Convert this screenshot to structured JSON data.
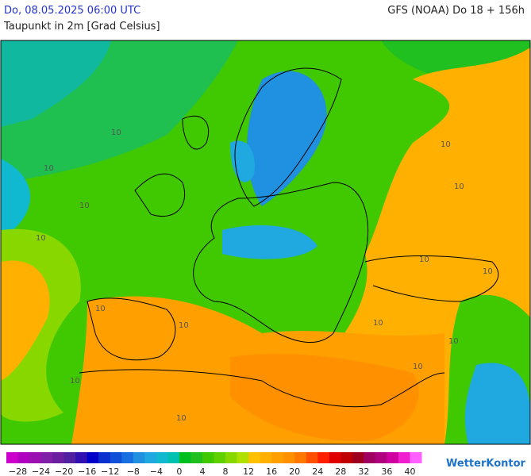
{
  "header": {
    "date": "Do, 08.05.2025 06:00 UTC",
    "model": "GFS (NOAA) Do 18 + 156h",
    "subtitle": "Taupunkt in 2m [Grad Celsius]"
  },
  "map": {
    "contour_labels": [
      "10",
      "10",
      "10",
      "10",
      "10",
      "10",
      "10",
      "10",
      "10",
      "10",
      "10",
      "10",
      "10",
      "10",
      "10"
    ]
  },
  "legend": {
    "colors": [
      "#cc00cc",
      "#b000c0",
      "#9a10b0",
      "#8020a8",
      "#6a1fa0",
      "#5020a0",
      "#3010b0",
      "#0000c8",
      "#0a30d0",
      "#1050d8",
      "#1870e0",
      "#2090e0",
      "#20a8e0",
      "#10b8d0",
      "#00c0b0",
      "#00c020",
      "#20c020",
      "#40c800",
      "#60d000",
      "#88d800",
      "#b0e000",
      "#ffc000",
      "#ffb000",
      "#ffa000",
      "#ff9000",
      "#ff7800",
      "#ff5000",
      "#ff2000",
      "#e00000",
      "#c00000",
      "#a00020",
      "#a00060",
      "#b00080",
      "#d000a0",
      "#f020d0",
      "#ff60ff"
    ],
    "labels": [
      "−28",
      "−24",
      "−20",
      "−16",
      "−12",
      "−8",
      "−4",
      "0",
      "4",
      "8",
      "12",
      "16",
      "20",
      "24",
      "28",
      "32",
      "36",
      "40"
    ]
  },
  "logo": "WetterKontor"
}
